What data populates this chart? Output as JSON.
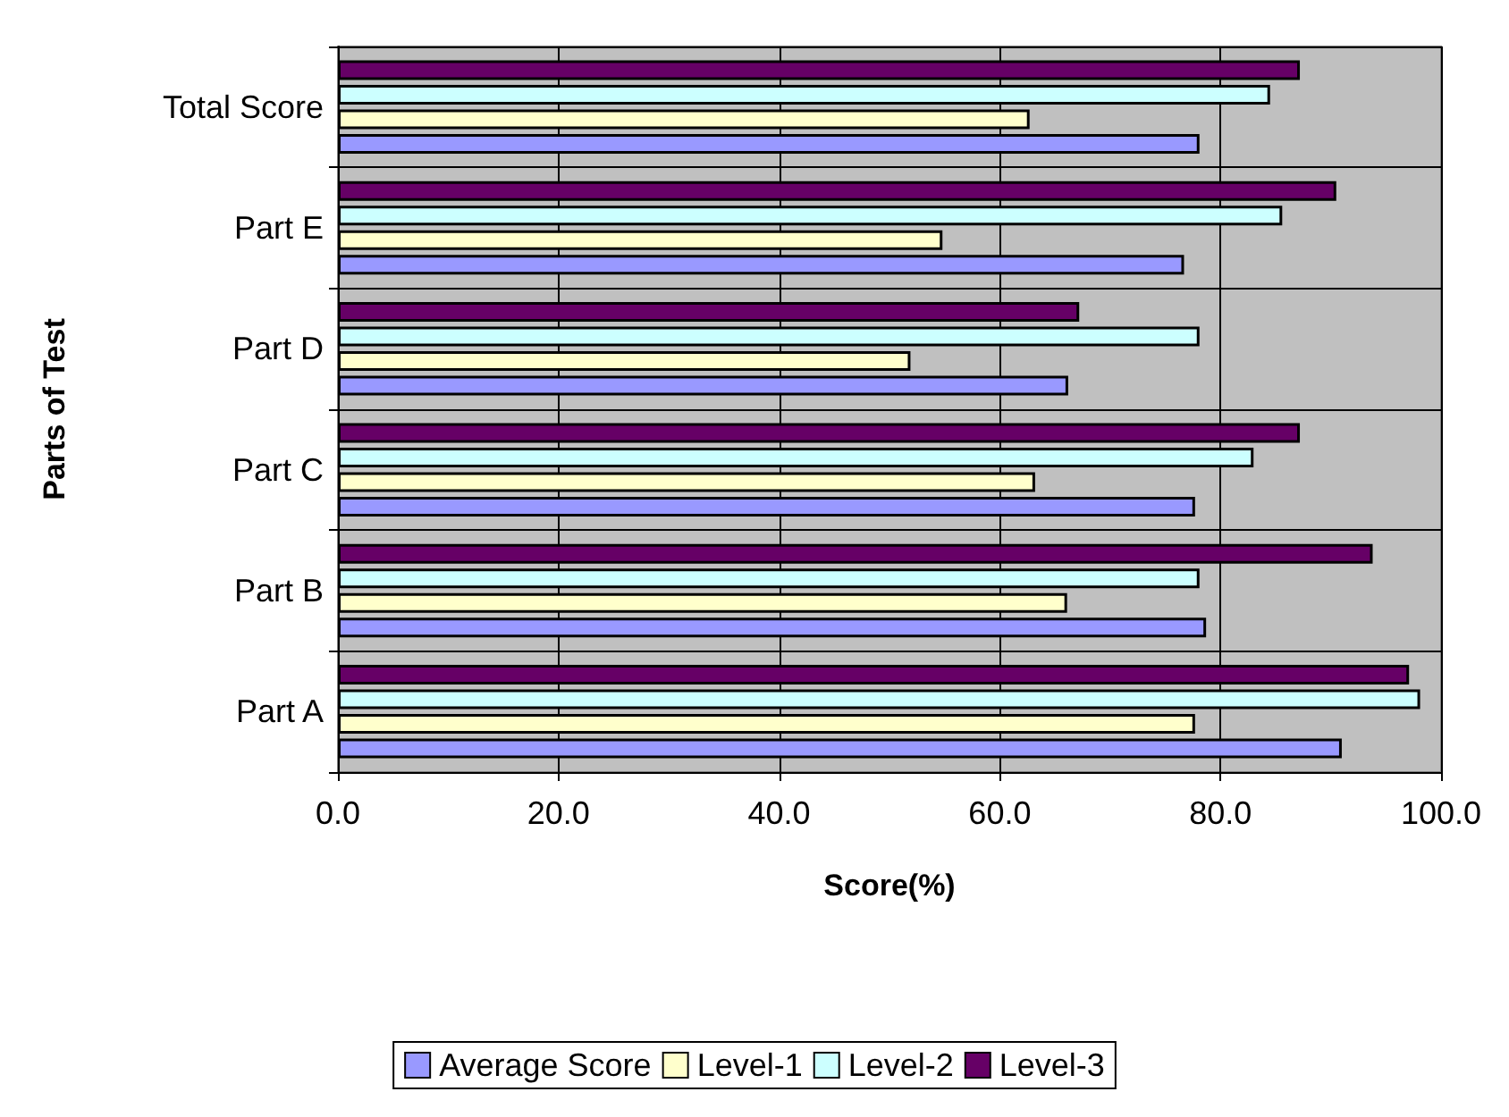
{
  "chart_data": {
    "type": "bar",
    "orientation": "horizontal",
    "xlabel": "Score(%)",
    "ylabel": "Parts of Test",
    "categories": [
      "Total Score",
      "Part E",
      "Part D",
      "Part C",
      "Part B",
      "Part A"
    ],
    "series": [
      {
        "name": "Average Score",
        "color": "#9999ff",
        "values": [
          78.1,
          76.7,
          66.2,
          77.7,
          78.7,
          91.0
        ]
      },
      {
        "name": "Level-1",
        "color": "#ffffcc",
        "values": [
          62.7,
          54.8,
          51.9,
          63.2,
          66.1,
          77.7
        ]
      },
      {
        "name": "Level-2",
        "color": "#ccffff",
        "values": [
          84.5,
          85.6,
          78.1,
          83.0,
          78.1,
          98.1
        ]
      },
      {
        "name": "Level-3",
        "color": "#660066",
        "values": [
          87.2,
          90.5,
          67.2,
          87.2,
          93.8,
          97.1
        ]
      }
    ],
    "xlim": [
      0,
      100
    ],
    "xticks": [
      {
        "value": 0,
        "label": "0.0"
      },
      {
        "value": 20,
        "label": "20.0"
      },
      {
        "value": 40,
        "label": "40.0"
      },
      {
        "value": 60,
        "label": "60.0"
      },
      {
        "value": 80,
        "label": "80.0"
      },
      {
        "value": 100,
        "label": "100.0"
      }
    ],
    "grid": true,
    "legend": "bottom"
  }
}
